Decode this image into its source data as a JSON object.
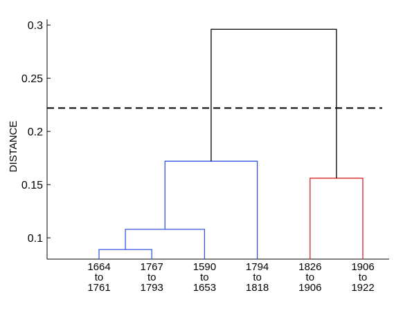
{
  "chart_data": {
    "type": "dendrogram",
    "title": "",
    "xlabel": "",
    "ylabel": "DISTANCE",
    "ylim": [
      0.08,
      0.3
    ],
    "yticks": [
      0.1,
      0.15,
      0.2,
      0.25,
      0.3
    ],
    "ytick_labels": [
      "0.1",
      "0.15",
      "0.2",
      "0.25",
      "0.3"
    ],
    "cutoff": 0.222,
    "cutoff_style": "dashed",
    "leaves": [
      {
        "id": "L1",
        "lines": [
          "1664",
          "to",
          "1761"
        ]
      },
      {
        "id": "L2",
        "lines": [
          "1767",
          "to",
          "1793"
        ]
      },
      {
        "id": "L3",
        "lines": [
          "1590",
          "to",
          "1653"
        ]
      },
      {
        "id": "L4",
        "lines": [
          "1794",
          "to",
          "1818"
        ]
      },
      {
        "id": "L5",
        "lines": [
          "1826",
          "to",
          "1906"
        ]
      },
      {
        "id": "L6",
        "lines": [
          "1906",
          "to",
          "1922"
        ]
      }
    ],
    "merges": [
      {
        "id": "A",
        "left": "L1",
        "right": "L2",
        "height": 0.089,
        "color": "#3355dd"
      },
      {
        "id": "B",
        "left": "A",
        "right": "L3",
        "height": 0.108,
        "color": "#3355dd"
      },
      {
        "id": "C",
        "left": "B",
        "right": "L4",
        "height": 0.172,
        "color": "#3355dd"
      },
      {
        "id": "D",
        "left": "L5",
        "right": "L6",
        "height": 0.156,
        "color": "#dd2222"
      },
      {
        "id": "E",
        "left": "C",
        "right": "D",
        "height": 0.296,
        "color": "#000000"
      }
    ]
  }
}
